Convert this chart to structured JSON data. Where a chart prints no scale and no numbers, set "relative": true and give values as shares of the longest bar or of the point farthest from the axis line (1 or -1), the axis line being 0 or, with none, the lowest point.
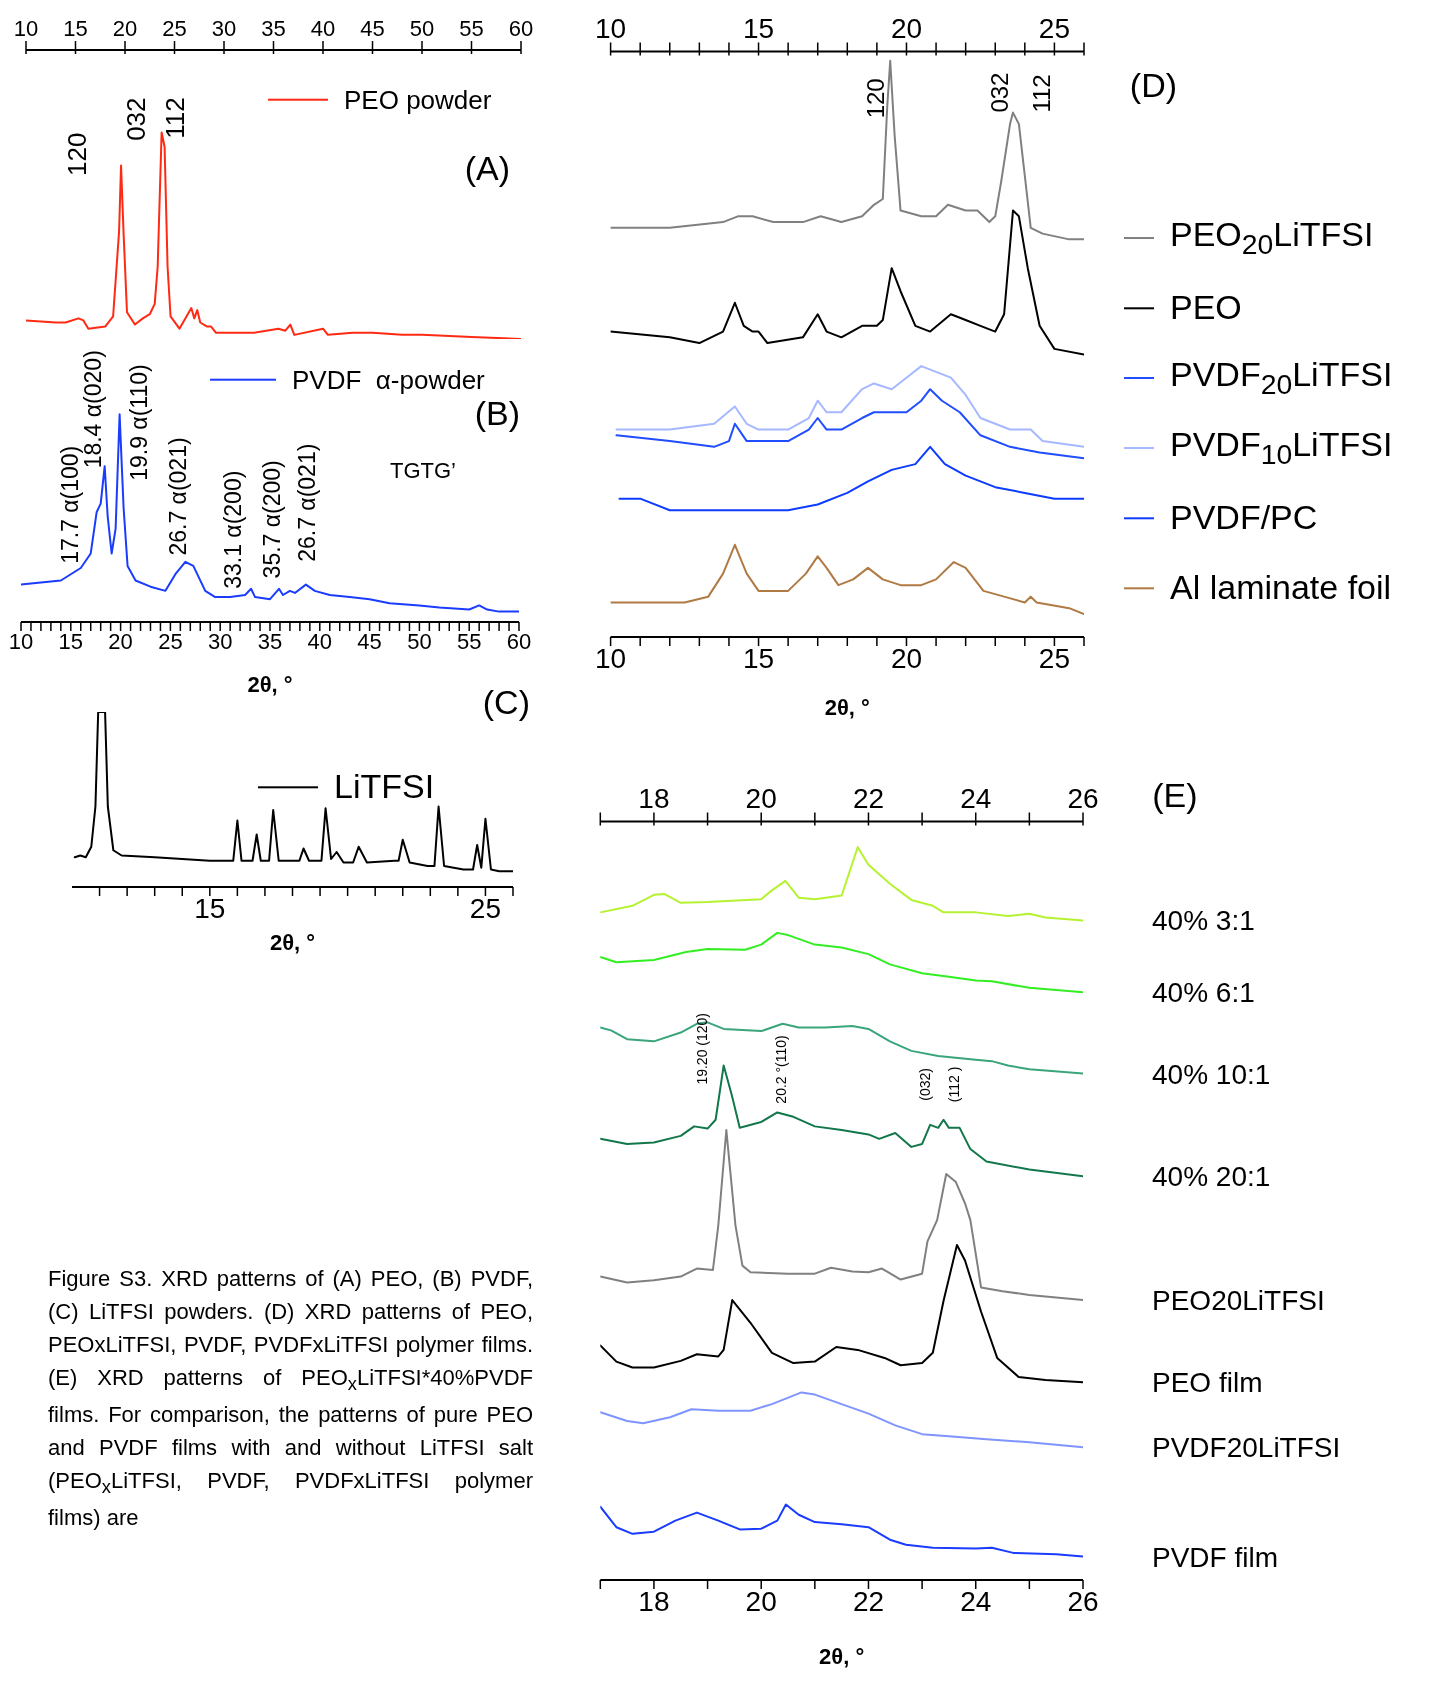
{
  "chart_data": [
    {
      "type": "line",
      "title": "(A)",
      "relative": true,
      "legend": "top right",
      "marker": "none",
      "line_style": "solid",
      "xlim": [
        10,
        60
      ],
      "xticks": [
        10,
        15,
        20,
        25,
        30,
        35,
        40,
        45,
        50,
        55,
        60
      ],
      "series": [
        {
          "name": "PEO powder",
          "color": "#ff2a14",
          "x": [
            10,
            13,
            14,
            15.3,
            15.8,
            16.3,
            18,
            18.8,
            19.4,
            19.6,
            19.85,
            20.2,
            21,
            21.8,
            22.5,
            23,
            23.3,
            23.7,
            24,
            24.3,
            24.6,
            25.5,
            26.7,
            27,
            27.3,
            27.6,
            28.3,
            28.7,
            29.2,
            31,
            31.5,
            33,
            35.5,
            36.2,
            36.7,
            37.1,
            40,
            40.5,
            43,
            45,
            48,
            50,
            55,
            60
          ],
          "values": [
            0.09,
            0.08,
            0.08,
            0.1,
            0.09,
            0.05,
            0.06,
            0.11,
            0.52,
            0.84,
            0.52,
            0.13,
            0.07,
            0.1,
            0.12,
            0.17,
            0.35,
            1,
            0.93,
            0.35,
            0.11,
            0.05,
            0.15,
            0.1,
            0.14,
            0.08,
            0.06,
            0.06,
            0.03,
            0.03,
            0.03,
            0.03,
            0.05,
            0.04,
            0.07,
            0.02,
            0.05,
            0.02,
            0.03,
            0.03,
            0.02,
            0.02,
            0.01,
            0
          ]
        }
      ],
      "annotations": [
        "120",
        "032",
        "112"
      ]
    },
    {
      "type": "line",
      "title": "(B)",
      "xlabel": "2θ, °",
      "relative": true,
      "legend": "top right",
      "marker": "none",
      "line_style": "solid",
      "xlim": [
        10,
        60
      ],
      "xticks": [
        10,
        {
          "value": 11,
          "label": null
        },
        {
          "value": 12,
          "label": null
        },
        {
          "value": 13,
          "label": null
        },
        {
          "value": 14,
          "label": null
        },
        15,
        {
          "value": 16,
          "label": null
        },
        {
          "value": 17,
          "label": null
        },
        {
          "value": 18,
          "label": null
        },
        {
          "value": 19,
          "label": null
        },
        20,
        {
          "value": 21,
          "label": null
        },
        {
          "value": 22,
          "label": null
        },
        {
          "value": 23,
          "label": null
        },
        {
          "value": 24,
          "label": null
        },
        25,
        {
          "value": 26,
          "label": null
        },
        {
          "value": 27,
          "label": null
        },
        {
          "value": 28,
          "label": null
        },
        {
          "value": 29,
          "label": null
        },
        30,
        {
          "value": 31,
          "label": null
        },
        {
          "value": 32,
          "label": null
        },
        {
          "value": 33,
          "label": null
        },
        {
          "value": 34,
          "label": null
        },
        35,
        {
          "value": 36,
          "label": null
        },
        {
          "value": 37,
          "label": null
        },
        {
          "value": 38,
          "label": null
        },
        {
          "value": 39,
          "label": null
        },
        40,
        {
          "value": 41,
          "label": null
        },
        {
          "value": 42,
          "label": null
        },
        {
          "value": 43,
          "label": null
        },
        {
          "value": 44,
          "label": null
        },
        45,
        {
          "value": 46,
          "label": null
        },
        {
          "value": 47,
          "label": null
        },
        {
          "value": 48,
          "label": null
        },
        {
          "value": 49,
          "label": null
        },
        50,
        {
          "value": 51,
          "label": null
        },
        {
          "value": 52,
          "label": null
        },
        {
          "value": 53,
          "label": null
        },
        {
          "value": 54,
          "label": null
        },
        55,
        {
          "value": 56,
          "label": null
        },
        {
          "value": 57,
          "label": null
        },
        {
          "value": 58,
          "label": null
        },
        {
          "value": 59,
          "label": null
        },
        60
      ],
      "series": [
        {
          "name": "PVDF  α-powder",
          "color": "#1a3cff",
          "x": [
            10,
            12,
            14,
            15,
            16,
            17,
            17.6,
            18,
            18.4,
            18.7,
            19.1,
            19.5,
            19.9,
            20.3,
            20.7,
            21.5,
            23,
            24.5,
            25.5,
            26.5,
            27.3,
            28.5,
            29.5,
            31,
            32.5,
            33.1,
            33.5,
            35,
            35.9,
            36.3,
            37,
            37.5,
            38.6,
            39.5,
            41,
            43,
            45,
            47,
            50,
            52,
            55,
            56,
            56.8,
            58,
            60
          ],
          "values": [
            0.18,
            0.19,
            0.2,
            0.23,
            0.26,
            0.33,
            0.53,
            0.57,
            0.75,
            0.51,
            0.33,
            0.45,
            1,
            0.55,
            0.27,
            0.2,
            0.17,
            0.15,
            0.23,
            0.29,
            0.27,
            0.15,
            0.12,
            0.12,
            0.13,
            0.16,
            0.12,
            0.11,
            0.16,
            0.13,
            0.15,
            0.14,
            0.18,
            0.15,
            0.13,
            0.12,
            0.11,
            0.09,
            0.08,
            0.07,
            0.06,
            0.08,
            0.06,
            0.05,
            0.05
          ]
        }
      ],
      "annotations": [
        "17.7 α(100)",
        "18.4 α(020)",
        "19.9 α(110)",
        "26.7 α(021)",
        "33.1 α(200)",
        "35.7 α(200)",
        "26.7 α(021)",
        "TGTG’"
      ]
    },
    {
      "type": "line",
      "title": "(C)",
      "xlabel": "2θ, °",
      "relative": true,
      "legend": "right",
      "marker": "none",
      "line_style": "solid",
      "xlim": [
        10,
        26
      ],
      "xticks": [
        {
          "value": 11,
          "label": null
        },
        {
          "value": 12,
          "label": null
        },
        {
          "value": 13,
          "label": null
        },
        {
          "value": 14,
          "label": null
        },
        15,
        {
          "value": 16,
          "label": null
        },
        {
          "value": 17,
          "label": null
        },
        {
          "value": 18,
          "label": null
        },
        {
          "value": 19,
          "label": null
        },
        {
          "value": 20,
          "label": null
        },
        {
          "value": 21,
          "label": null
        },
        {
          "value": 22,
          "label": null
        },
        {
          "value": 23,
          "label": null
        },
        {
          "value": 24,
          "label": null
        },
        25,
        {
          "value": 26,
          "label": null
        }
      ],
      "series": [
        {
          "name": "LiTFSI",
          "color": "#000000",
          "x": [
            10.1,
            10.3,
            10.5,
            10.7,
            10.85,
            10.95,
            11.2,
            11.3,
            11.5,
            11.8,
            13,
            14,
            15,
            15.85,
            16,
            16.15,
            16.55,
            16.7,
            16.85,
            17.15,
            17.3,
            17.5,
            18.25,
            18.4,
            18.6,
            19.05,
            19.2,
            19.4,
            19.6,
            19.85,
            20.2,
            20.4,
            20.7,
            21.7,
            21.85,
            22,
            22.25,
            22.9,
            23.15,
            23.3,
            23.5,
            24.2,
            24.55,
            24.7,
            24.85,
            25,
            25.2,
            25.5,
            26
          ],
          "values": [
            0.17,
            0.18,
            0.17,
            0.23,
            0.46,
            1,
            1,
            0.46,
            0.21,
            0.18,
            0.17,
            0.16,
            0.15,
            0.15,
            0.38,
            0.15,
            0.15,
            0.3,
            0.15,
            0.15,
            0.44,
            0.15,
            0.15,
            0.22,
            0.15,
            0.15,
            0.45,
            0.16,
            0.2,
            0.14,
            0.14,
            0.23,
            0.14,
            0.15,
            0.15,
            0.27,
            0.14,
            0.12,
            0.12,
            0.46,
            0.12,
            0.1,
            0.1,
            0.24,
            0.11,
            0.39,
            0.1,
            0.09,
            0.09
          ]
        }
      ]
    },
    {
      "type": "line",
      "xlabel": "2θ, °",
      "relative": true,
      "legend": "right",
      "marker": "none",
      "line_style": "solid",
      "xlim": [
        10,
        26
      ],
      "xticks": [
        10,
        {
          "value": 11,
          "label": null
        },
        {
          "value": 12,
          "label": null
        },
        {
          "value": 13,
          "label": null
        },
        {
          "value": 14,
          "label": null
        },
        15,
        {
          "value": 16,
          "label": null
        },
        {
          "value": 17,
          "label": null
        },
        {
          "value": 18,
          "label": null
        },
        {
          "value": 19,
          "label": null
        },
        20,
        {
          "value": 21,
          "label": null
        },
        {
          "value": 22,
          "label": null
        },
        {
          "value": 23,
          "label": null
        },
        {
          "value": 24,
          "label": null
        },
        25,
        {
          "value": 26,
          "label": null
        }
      ],
      "x2lim": [
        10,
        26
      ],
      "x2ticks": [
        10,
        {
          "value": 11,
          "label": null
        },
        {
          "value": 12,
          "label": null
        },
        {
          "value": 13,
          "label": null
        },
        {
          "value": 14,
          "label": null
        },
        15,
        {
          "value": 16,
          "label": null
        },
        {
          "value": 17,
          "label": null
        },
        {
          "value": 18,
          "label": null
        },
        {
          "value": 19,
          "label": null
        },
        20,
        {
          "value": 21,
          "label": null
        },
        {
          "value": 22,
          "label": null
        },
        {
          "value": 23,
          "label": null
        },
        {
          "value": 24,
          "label": null
        },
        25,
        {
          "value": 26,
          "label": null
        }
      ],
      "series": [
        {
          "name": "PEO$_{20}$LiTFSI",
          "color": "#808080",
          "x": [
            10,
            12,
            13.8,
            14.3,
            14.8,
            15.5,
            16.5,
            17.1,
            17.8,
            18.5,
            18.9,
            19.2,
            19.35,
            19.45,
            19.6,
            19.8,
            20.5,
            21,
            21.4,
            22,
            22.4,
            22.8,
            23,
            23.2,
            23.5,
            23.6,
            23.8,
            24,
            24.2,
            24.6,
            25.5,
            26
          ],
          "values": [
            0.71,
            0.71,
            0.72,
            0.73,
            0.73,
            0.72,
            0.72,
            0.73,
            0.72,
            0.73,
            0.75,
            0.76,
            0.92,
            1,
            0.87,
            0.74,
            0.73,
            0.73,
            0.75,
            0.74,
            0.74,
            0.72,
            0.73,
            0.79,
            0.89,
            0.91,
            0.89,
            0.8,
            0.71,
            0.7,
            0.69,
            0.69
          ]
        },
        {
          "name": "PEO",
          "color": "#000000",
          "x": [
            10,
            12,
            13,
            13.8,
            14.2,
            14.5,
            14.8,
            15,
            15.3,
            16.5,
            17,
            17.3,
            17.8,
            18.5,
            19,
            19.2,
            19.5,
            19.8,
            20.3,
            20.8,
            21.5,
            22,
            22.5,
            23,
            23.3,
            23.6,
            23.8,
            24.1,
            24.5,
            25,
            26
          ],
          "values": [
            0.53,
            0.52,
            0.51,
            0.53,
            0.58,
            0.54,
            0.53,
            0.53,
            0.51,
            0.52,
            0.56,
            0.53,
            0.52,
            0.54,
            0.54,
            0.55,
            0.64,
            0.6,
            0.54,
            0.53,
            0.56,
            0.55,
            0.54,
            0.53,
            0.56,
            0.74,
            0.73,
            0.64,
            0.54,
            0.5,
            0.49
          ]
        },
        {
          "name": "PVDF$_{20}$LiTFSI",
          "color": "#1f4dff",
          "x": [
            10.2,
            12,
            13.5,
            14,
            14.2,
            14.6,
            15,
            16,
            16.7,
            17,
            17.3,
            17.8,
            18.5,
            18.9,
            19.5,
            20,
            20.5,
            20.8,
            21.2,
            21.8,
            22.5,
            23.5,
            24.5,
            26
          ],
          "values": [
            0.35,
            0.34,
            0.33,
            0.34,
            0.37,
            0.34,
            0.34,
            0.34,
            0.36,
            0.38,
            0.36,
            0.36,
            0.38,
            0.39,
            0.39,
            0.39,
            0.41,
            0.43,
            0.41,
            0.39,
            0.35,
            0.33,
            0.32,
            0.31
          ]
        },
        {
          "name": "PVDF$_{10}$LiTFSI",
          "color": "#a6b8ff",
          "x": [
            10.2,
            12,
            13.5,
            14.2,
            14.6,
            15,
            16,
            16.7,
            17,
            17.3,
            17.8,
            18.5,
            18.9,
            19.5,
            20,
            20.5,
            21,
            21.5,
            22,
            22.5,
            23.5,
            24.2,
            24.6,
            26
          ],
          "values": [
            0.36,
            0.36,
            0.37,
            0.4,
            0.37,
            0.36,
            0.36,
            0.38,
            0.41,
            0.39,
            0.39,
            0.43,
            0.44,
            0.43,
            0.45,
            0.47,
            0.46,
            0.45,
            0.42,
            0.38,
            0.36,
            0.36,
            0.34,
            0.33
          ]
        },
        {
          "name": "PVDF/PC",
          "color": "#0d3bff",
          "x": [
            10.3,
            11,
            12,
            13,
            14,
            14.3,
            15,
            16,
            17,
            18,
            18.7,
            19.5,
            20.3,
            20.8,
            21.3,
            22,
            23,
            24,
            25,
            26
          ],
          "values": [
            0.24,
            0.24,
            0.22,
            0.22,
            0.22,
            0.22,
            0.22,
            0.22,
            0.23,
            0.25,
            0.27,
            0.29,
            0.3,
            0.33,
            0.3,
            0.28,
            0.26,
            0.25,
            0.24,
            0.24
          ]
        },
        {
          "name": "Al laminate foil",
          "color": "#b07a44",
          "x": [
            10,
            11.5,
            12.5,
            13.3,
            13.8,
            14.2,
            14.6,
            15,
            16,
            16.6,
            17,
            17.3,
            17.7,
            18.2,
            18.7,
            19.2,
            19.8,
            20.5,
            21,
            21.6,
            22,
            22.6,
            23.3,
            24,
            24.2,
            24.4,
            25.5,
            26
          ],
          "values": [
            0.06,
            0.06,
            0.06,
            0.07,
            0.11,
            0.16,
            0.11,
            0.08,
            0.08,
            0.11,
            0.14,
            0.12,
            0.09,
            0.1,
            0.12,
            0.1,
            0.09,
            0.09,
            0.1,
            0.13,
            0.12,
            0.08,
            0.07,
            0.06,
            0.07,
            0.06,
            0.05,
            0.04
          ]
        }
      ],
      "annotations": [
        "120",
        "032",
        "112",
        "(D)"
      ]
    },
    {
      "type": "line",
      "xlabel": "2θ, °",
      "relative": true,
      "marker": "none",
      "line_style": "solid",
      "xlim": [
        17,
        26
      ],
      "xticks": [
        {
          "value": 17,
          "label": null
        },
        18,
        {
          "value": 19,
          "label": null
        },
        20,
        {
          "value": 21,
          "label": null
        },
        22,
        {
          "value": 23,
          "label": null
        },
        24,
        {
          "value": 25,
          "label": null
        },
        26
      ],
      "x2lim": [
        17,
        26
      ],
      "x2ticks": [
        {
          "value": 17,
          "label": null
        },
        18,
        {
          "value": 19,
          "label": null
        },
        20,
        {
          "value": 21,
          "label": null
        },
        22,
        {
          "value": 23,
          "label": null
        },
        24,
        {
          "value": 25,
          "label": null
        },
        26
      ],
      "series": [
        {
          "name": "40% 3:1",
          "color": "#b5f230",
          "x": [
            17,
            17.6,
            18,
            18.2,
            18.5,
            19,
            20,
            20.2,
            20.45,
            20.7,
            21,
            21.5,
            21.8,
            22,
            22.2,
            22.4,
            22.8,
            23.2,
            23.4,
            24,
            24.6,
            25,
            25.3,
            26
          ],
          "values": [
            0.911,
            0.92,
            0.935,
            0.936,
            0.924,
            0.925,
            0.929,
            0.941,
            0.954,
            0.931,
            0.929,
            0.934,
            1,
            0.976,
            0.963,
            0.95,
            0.928,
            0.92,
            0.911,
            0.911,
            0.906,
            0.909,
            0.904,
            0.9
          ]
        },
        {
          "name": "40% 6:1",
          "color": "#33ee22",
          "x": [
            17,
            17.3,
            18,
            18.6,
            19,
            19.7,
            20,
            20.3,
            20.5,
            21,
            21.5,
            22,
            22.4,
            23,
            23.5,
            24,
            24.3,
            25,
            26
          ],
          "values": [
            0.85,
            0.843,
            0.846,
            0.857,
            0.861,
            0.86,
            0.867,
            0.883,
            0.88,
            0.867,
            0.863,
            0.854,
            0.84,
            0.828,
            0.823,
            0.818,
            0.817,
            0.808,
            0.802
          ]
        },
        {
          "name": "40% 10:1",
          "color": "#3aa57a",
          "x": [
            17,
            17.2,
            17.5,
            18,
            18.5,
            18.8,
            19,
            19.3,
            20,
            20.4,
            20.7,
            21.2,
            21.7,
            22,
            22.4,
            22.8,
            23.3,
            24,
            24.3,
            24.6,
            25,
            26
          ],
          "values": [
            0.754,
            0.75,
            0.738,
            0.735,
            0.747,
            0.759,
            0.761,
            0.752,
            0.749,
            0.759,
            0.754,
            0.754,
            0.756,
            0.752,
            0.735,
            0.722,
            0.715,
            0.71,
            0.708,
            0.702,
            0.697,
            0.691
          ]
        },
        {
          "name": "40% 20:1",
          "color": "#12774a",
          "x": [
            17,
            17.5,
            18,
            18.5,
            18.75,
            19,
            19.15,
            19.3,
            19.45,
            19.6,
            20,
            20.3,
            20.6,
            21,
            21.5,
            22,
            22.2,
            22.5,
            22.8,
            23,
            23.15,
            23.3,
            23.4,
            23.5,
            23.7,
            23.9,
            24.2,
            25,
            26
          ],
          "values": [
            0.602,
            0.595,
            0.597,
            0.606,
            0.619,
            0.616,
            0.628,
            0.702,
            0.662,
            0.617,
            0.625,
            0.638,
            0.632,
            0.619,
            0.614,
            0.608,
            0.602,
            0.61,
            0.591,
            0.595,
            0.621,
            0.617,
            0.628,
            0.617,
            0.617,
            0.588,
            0.571,
            0.56,
            0.551
          ]
        },
        {
          "name": "PEO20LiTFSI",
          "color": "#808080",
          "x": [
            17,
            17.5,
            18,
            18.5,
            18.8,
            19.1,
            19.2,
            19.35,
            19.52,
            19.65,
            19.8,
            20.5,
            21,
            21.3,
            21.7,
            22,
            22.25,
            22.6,
            23,
            23.1,
            23.28,
            23.45,
            23.63,
            23.8,
            23.9,
            24.1,
            24.5,
            25,
            26
          ],
          "values": [
            0.414,
            0.406,
            0.409,
            0.414,
            0.425,
            0.423,
            0.484,
            0.614,
            0.484,
            0.429,
            0.42,
            0.418,
            0.418,
            0.426,
            0.421,
            0.42,
            0.425,
            0.41,
            0.418,
            0.462,
            0.491,
            0.554,
            0.543,
            0.514,
            0.491,
            0.399,
            0.394,
            0.389,
            0.382
          ]
        },
        {
          "name": "PEO film",
          "color": "#000000",
          "x": [
            17,
            17.3,
            17.6,
            18,
            18.5,
            18.8,
            19.2,
            19.3,
            19.46,
            19.8,
            20.2,
            20.6,
            21,
            21.4,
            21.8,
            22.3,
            22.6,
            23,
            23.2,
            23.4,
            23.65,
            23.8,
            24.1,
            24.4,
            24.8,
            25.3,
            26
          ],
          "values": [
            0.32,
            0.298,
            0.29,
            0.29,
            0.299,
            0.308,
            0.305,
            0.314,
            0.382,
            0.351,
            0.31,
            0.296,
            0.298,
            0.318,
            0.314,
            0.303,
            0.293,
            0.296,
            0.31,
            0.381,
            0.457,
            0.436,
            0.366,
            0.303,
            0.277,
            0.273,
            0.27
          ]
        },
        {
          "name": "PVDF20LiTFSI",
          "color": "#8094ff",
          "x": [
            17,
            17.5,
            17.8,
            18.3,
            18.7,
            19.2,
            19.8,
            20.2,
            20.75,
            21,
            21.5,
            22,
            22.5,
            23,
            23.5,
            24.2,
            25,
            26
          ],
          "values": [
            0.229,
            0.217,
            0.214,
            0.222,
            0.233,
            0.231,
            0.231,
            0.24,
            0.256,
            0.253,
            0.24,
            0.227,
            0.211,
            0.199,
            0.196,
            0.192,
            0.188,
            0.181
          ]
        },
        {
          "name": "PVDF film",
          "color": "#1a3cff",
          "x": [
            17,
            17.3,
            17.6,
            18,
            18.4,
            18.8,
            19.2,
            19.6,
            20,
            20.3,
            20.46,
            20.7,
            21,
            21.5,
            22,
            22.4,
            22.7,
            23.2,
            24,
            24.3,
            24.7,
            25.5,
            26
          ],
          "values": [
            0.1,
            0.072,
            0.063,
            0.066,
            0.081,
            0.092,
            0.081,
            0.069,
            0.07,
            0.081,
            0.103,
            0.089,
            0.079,
            0.076,
            0.072,
            0.055,
            0.048,
            0.044,
            0.043,
            0.044,
            0.037,
            0.035,
            0.032
          ]
        }
      ],
      "annotations": [
        "19.20 (120)",
        "20.2 °(110)",
        "(032)",
        "(112 )",
        "Figure S3. XRD patterns of (A) PEO, (B) PVDF, (C) LiTFSI powders. (D) XRD patterns of PEO, PEOxLiTFSI, PVDF, PVDFxLiTFSI polymer films. (E) XRD patterns of PEO$_{x}$LiTFSI*40%PVDF films. For comparison, the patterns of pure PEO and PVDF films with and without LiTFSI salt (PEO$_{x}$LiTFSI, PVDF, PVDFxLiTFSI polymer films) are",
        "(E)"
      ]
    }
  ]
}
